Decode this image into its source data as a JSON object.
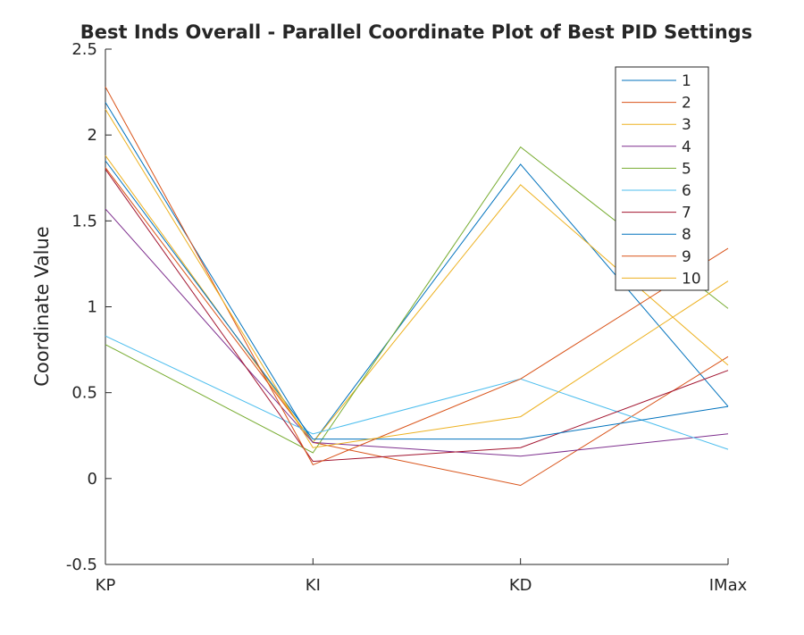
{
  "chart_data": {
    "type": "line",
    "title": "Best Inds Overall - Parallel Coordinate Plot of Best PID Settings",
    "xlabel": "",
    "ylabel": "Coordinate Value",
    "categories": [
      "KP",
      "KI",
      "KD",
      "IMax"
    ],
    "ylim": [
      -0.5,
      2.5
    ],
    "yticks": [
      -0.5,
      0,
      0.5,
      1,
      1.5,
      2,
      2.5
    ],
    "ytick_labels": [
      "-0.5",
      "0",
      "0.5",
      "1",
      "1.5",
      "2",
      "2.5"
    ],
    "grid": false,
    "legend_position": "top-right",
    "series": [
      {
        "name": "1",
        "color": "#0072BD",
        "values": [
          2.19,
          0.21,
          1.83,
          0.42
        ]
      },
      {
        "name": "2",
        "color": "#D95319",
        "values": [
          1.81,
          0.21,
          -0.04,
          0.71
        ]
      },
      {
        "name": "3",
        "color": "#EDB120",
        "values": [
          1.88,
          0.21,
          1.71,
          0.66
        ]
      },
      {
        "name": "4",
        "color": "#7E2F8E",
        "values": [
          1.57,
          0.21,
          0.13,
          0.26
        ]
      },
      {
        "name": "5",
        "color": "#77AC30",
        "values": [
          0.78,
          0.15,
          1.93,
          0.99
        ]
      },
      {
        "name": "6",
        "color": "#4DBEEE",
        "values": [
          0.83,
          0.26,
          0.58,
          0.17
        ]
      },
      {
        "name": "7",
        "color": "#A2142F",
        "values": [
          1.8,
          0.1,
          0.18,
          0.63
        ]
      },
      {
        "name": "8",
        "color": "#0072BD",
        "values": [
          1.85,
          0.23,
          0.23,
          0.42
        ]
      },
      {
        "name": "9",
        "color": "#D95319",
        "values": [
          2.28,
          0.08,
          0.58,
          1.34
        ]
      },
      {
        "name": "10",
        "color": "#EDB120",
        "values": [
          2.15,
          0.18,
          0.36,
          1.15
        ]
      }
    ]
  }
}
